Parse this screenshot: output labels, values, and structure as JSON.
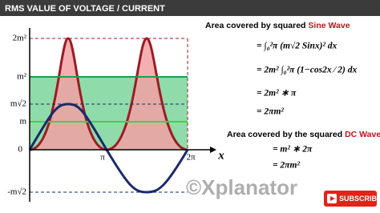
{
  "header": {
    "title": "RMS VALUE OF VOLTAGE / CURRENT"
  },
  "graph": {
    "y_labels": [
      "2m²",
      "m²",
      "m√2",
      "m",
      "0",
      "-m√2"
    ],
    "x_labels": [
      "π",
      "2π",
      "x"
    ]
  },
  "sine_section": {
    "heading": "Area covered by squared",
    "highlight": "Sine Wave",
    "steps": [
      "= ∫₀²π (m√2 Sinx)² dx",
      "= 2m² ∫₀²π (1−cos2x ⁄ 2) dx",
      "= 2m² ∗ π",
      "= 2πm²"
    ]
  },
  "dc_section": {
    "heading": "Area covered by the squared",
    "highlight": "DC Wave",
    "steps": [
      "= m² ∗ 2π",
      "= 2πm²"
    ]
  },
  "watermark": "©Xplanator",
  "subscribe": "SUBSCRIBE"
}
